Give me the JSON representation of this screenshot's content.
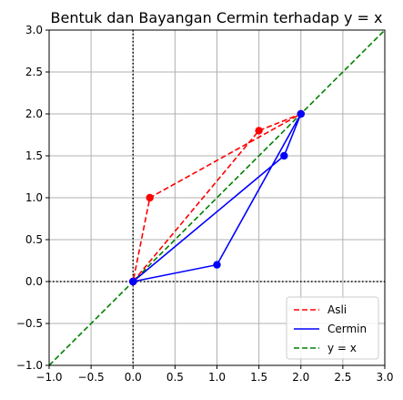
{
  "chart_data": {
    "type": "line",
    "title": "Bentuk dan Bayangan Cermin terhadap y = x",
    "xlabel": "",
    "ylabel": "",
    "xlim": [
      -1.0,
      3.0
    ],
    "ylim": [
      -1.0,
      3.0
    ],
    "xticks": [
      -1.0,
      -0.5,
      0.0,
      0.5,
      1.0,
      1.5,
      2.0,
      2.5,
      3.0
    ],
    "yticks": [
      -1.0,
      -0.5,
      0.0,
      0.5,
      1.0,
      1.5,
      2.0,
      2.5,
      3.0
    ],
    "xtick_labels": [
      "−1.0",
      "−0.5",
      "0.0",
      "0.5",
      "1.0",
      "1.5",
      "2.0",
      "2.5",
      "3.0"
    ],
    "ytick_labels": [
      "−1.0",
      "−0.5",
      "0.0",
      "0.5",
      "1.0",
      "1.5",
      "2.0",
      "2.5",
      "3.0"
    ],
    "grid": true,
    "legend_position": "bottom-right",
    "reference_lines": [
      {
        "axis": "x",
        "value": 0,
        "style": "dotted",
        "color": "#000000"
      },
      {
        "axis": "y",
        "value": 0,
        "style": "dotted",
        "color": "#000000"
      }
    ],
    "series": [
      {
        "name": "Asli",
        "color": "#ff0000",
        "style": "dashed",
        "markers": true,
        "x": [
          0.0,
          1.5,
          2.0,
          0.2,
          0.0
        ],
        "y": [
          0.0,
          1.8,
          2.0,
          1.0,
          0.0
        ]
      },
      {
        "name": "Cermin",
        "color": "#0000ff",
        "style": "solid",
        "markers": true,
        "x": [
          0.0,
          1.8,
          2.0,
          1.0,
          0.0
        ],
        "y": [
          0.0,
          1.5,
          2.0,
          0.2,
          0.0
        ]
      },
      {
        "name": "y = x",
        "color": "#008000",
        "style": "dashed",
        "markers": false,
        "x": [
          -1.0,
          3.0
        ],
        "y": [
          -1.0,
          3.0
        ]
      }
    ]
  }
}
